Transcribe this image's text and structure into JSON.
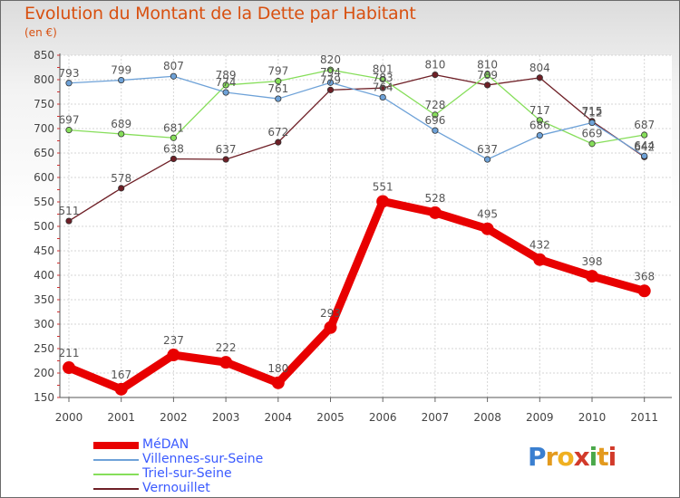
{
  "header": {
    "title": "Evolution du Montant de la Dette par Habitant",
    "subtitle": "(en €)"
  },
  "brand": {
    "letters": [
      "P",
      "r",
      "o",
      "x",
      "i",
      "t",
      "i"
    ],
    "colors": [
      "#3a7fd0",
      "#e39a1e",
      "#f0b020",
      "#d23a2a",
      "#4aa84a",
      "#e39a1e",
      "#d23a2a"
    ]
  },
  "chart_data": {
    "type": "line",
    "categories": [
      "2000",
      "2001",
      "2002",
      "2003",
      "2004",
      "2005",
      "2006",
      "2007",
      "2008",
      "2009",
      "2010",
      "2011"
    ],
    "ylim": [
      150,
      850
    ],
    "yticks": [
      150,
      200,
      250,
      300,
      350,
      400,
      450,
      500,
      550,
      600,
      650,
      700,
      750,
      800,
      850
    ],
    "grid": true,
    "legend_position": "bottom-left",
    "series": [
      {
        "name": "MéDAN",
        "color": "#e80000",
        "width": 9,
        "marker_r": 7,
        "values": [
          211,
          167,
          237,
          222,
          180,
          293,
          551,
          528,
          495,
          432,
          398,
          368
        ]
      },
      {
        "name": "Villennes-sur-Seine",
        "color": "#6ea2d8",
        "width": 1.3,
        "marker_r": 3.2,
        "values": [
          793,
          799,
          807,
          774,
          761,
          794,
          764,
          696,
          637,
          686,
          712,
          644
        ]
      },
      {
        "name": "Triel-sur-Seine",
        "color": "#86de5a",
        "width": 1.3,
        "marker_r": 3.2,
        "values": [
          697,
          689,
          681,
          789,
          797,
          820,
          801,
          728,
          810,
          717,
          669,
          687
        ]
      },
      {
        "name": "Vernouillet",
        "color": "#6e1f26",
        "width": 1.3,
        "marker_r": 3.2,
        "values": [
          511,
          578,
          638,
          637,
          672,
          779,
          783,
          810,
          789,
          804,
          715,
          642
        ]
      }
    ],
    "data_labels": [
      [
        "211",
        "167",
        "237",
        "222",
        "180",
        "293",
        "551",
        "528",
        "495",
        "432",
        "398",
        "368"
      ],
      [
        "793",
        "799",
        "807",
        "774",
        "761",
        "794",
        "764",
        "696",
        "637",
        "686",
        "712",
        "644"
      ],
      [
        "697",
        "689",
        "681",
        "789",
        "797",
        "820",
        "801",
        "728",
        "810",
        "717",
        "669",
        "687"
      ],
      [
        "511",
        "578",
        "638",
        "637",
        "672",
        "779",
        "783",
        "810",
        "789",
        "804",
        "715",
        "642"
      ]
    ]
  }
}
